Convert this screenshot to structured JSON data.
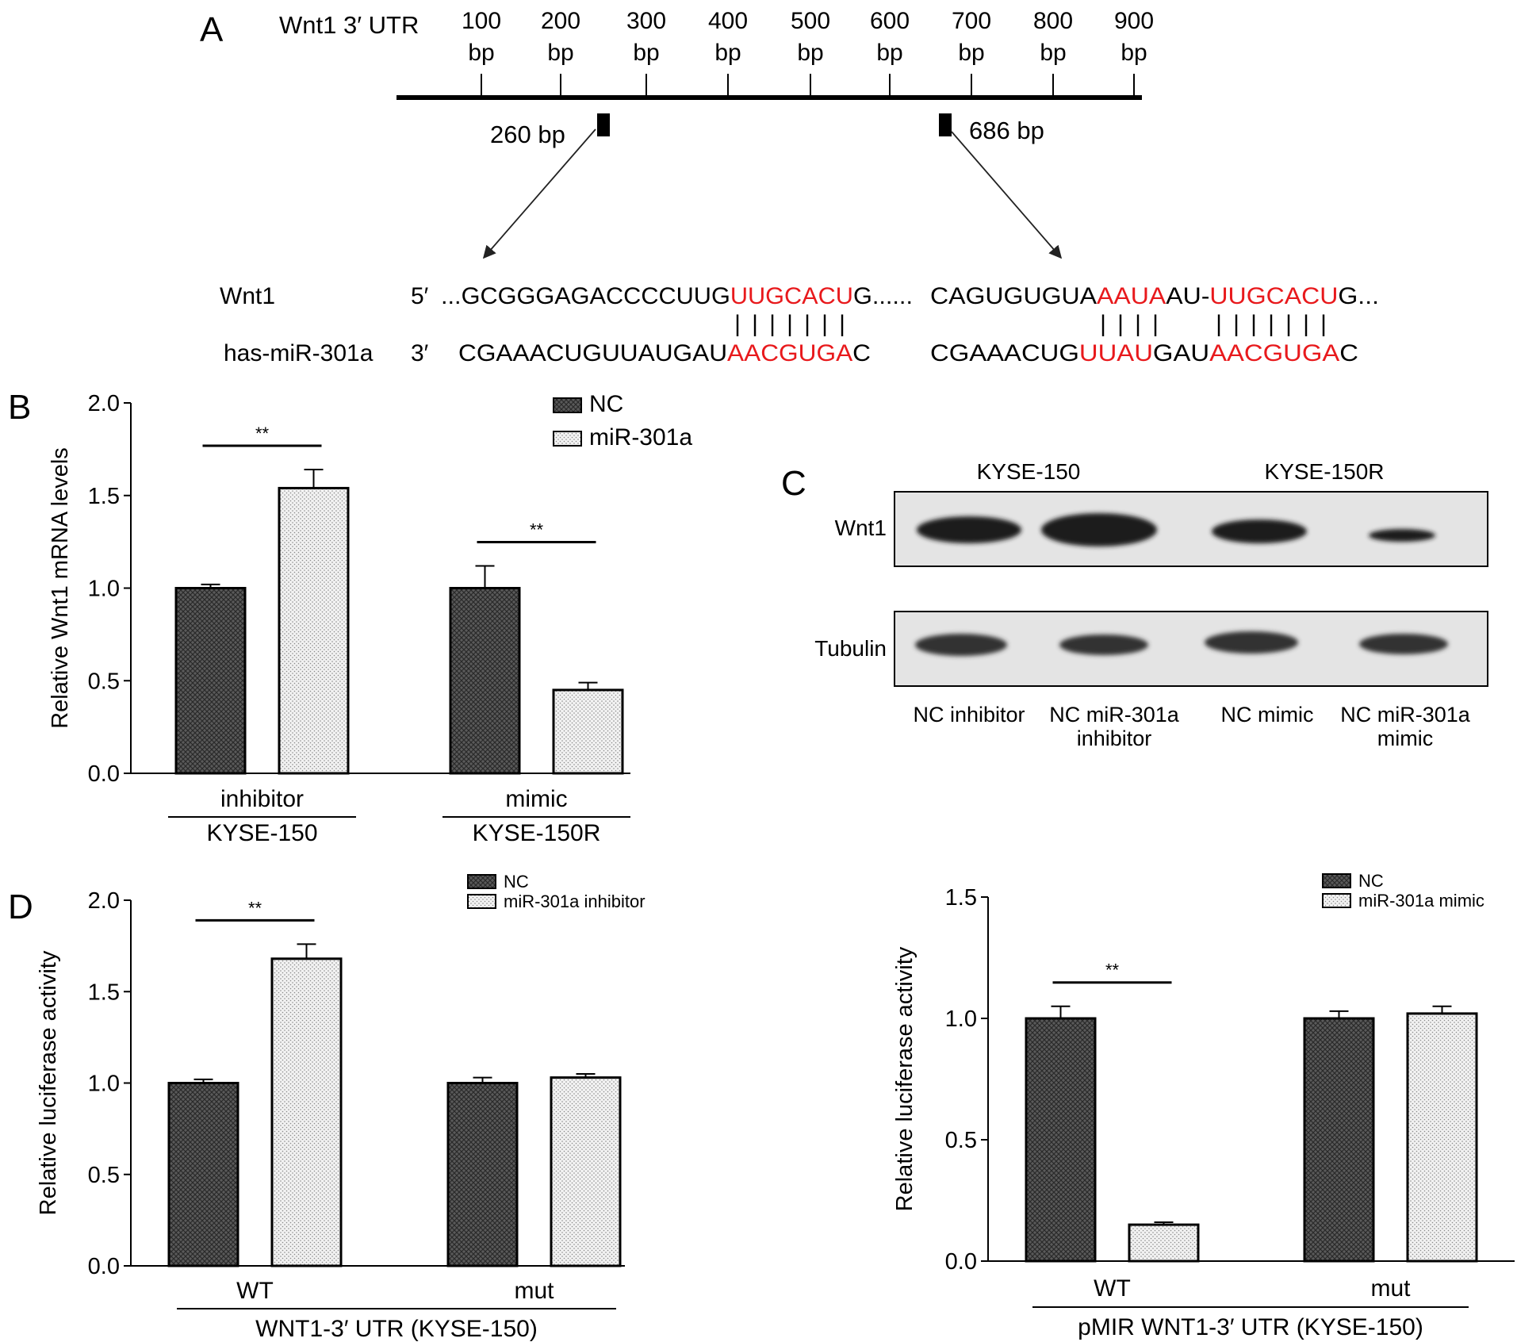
{
  "panel_letters": {
    "a": "A",
    "b": "B",
    "c": "C",
    "d": "D"
  },
  "panel_a": {
    "title": "Wnt1 3′ UTR",
    "ticks": [
      {
        "num": "100",
        "unit": "bp"
      },
      {
        "num": "200",
        "unit": "bp"
      },
      {
        "num": "300",
        "unit": "bp"
      },
      {
        "num": "400",
        "unit": "bp"
      },
      {
        "num": "500",
        "unit": "bp"
      },
      {
        "num": "600",
        "unit": "bp"
      },
      {
        "num": "700",
        "unit": "bp"
      },
      {
        "num": "800",
        "unit": "bp"
      },
      {
        "num": "900",
        "unit": "bp"
      }
    ],
    "site1_label": "260 bp",
    "site2_label": "686 bp",
    "gene_label": "Wnt1",
    "mirna_label": "has-miR-301a",
    "five_prime": "5′",
    "three_prime": "3′",
    "seq1_top": {
      "black1": "...GCGGGAGACCCCUUG",
      "red1": "UUGCACU",
      "black2": "G......"
    },
    "seq1_bot": {
      "black1": "CGAAACUGUUAUGAU",
      "red1": "AACGUGA",
      "black2": "C"
    },
    "seq2_top": {
      "black1": "CAGUGUGUA",
      "red1": "AAUA",
      "black2": "AU-",
      "red2": "UUGCACU",
      "black3": "G..."
    },
    "seq2_bot": {
      "black1": "CGAAACUG",
      "red1": "UUAU",
      "black2": "GAU",
      "red2": "AACGUGA",
      "black3": "C"
    },
    "pairing": "|"
  },
  "panel_c": {
    "group1": "KYSE-150",
    "group2": "KYSE-150R",
    "row1": "Wnt1",
    "row2": "Tubulin",
    "lanes": [
      {
        "line1": "NC inhibitor",
        "line2": ""
      },
      {
        "line1": "NC miR-301a",
        "line2": "inhibitor"
      },
      {
        "line1": "NC mimic",
        "line2": ""
      },
      {
        "line1": "NC miR-301a",
        "line2": "mimic"
      }
    ],
    "colors": {
      "band": "#1c1c1c",
      "blot_bg": "#e4e4e4"
    }
  },
  "chart_data": [
    {
      "type": "bar",
      "panel": "B",
      "ylabel": "Relative Wnt1 mRNA levels",
      "ylim": [
        0,
        2.0
      ],
      "yticks": [
        "0.0",
        "0.5",
        "1.0",
        "1.5",
        "2.0"
      ],
      "categories": [
        "inhibitor",
        "mimic"
      ],
      "groups": [
        "KYSE-150",
        "KYSE-150R"
      ],
      "series": [
        {
          "name": "NC",
          "values": [
            1.0,
            1.0
          ],
          "errors": [
            0.02,
            0.12
          ]
        },
        {
          "name": "miR-301a",
          "values": [
            1.54,
            0.45
          ],
          "errors": [
            0.1,
            0.04
          ]
        }
      ],
      "significance": [
        "**",
        "**"
      ],
      "legend": "top-right"
    },
    {
      "type": "bar",
      "panel": "D-left",
      "ylabel": "Relative luciferase activity",
      "ylim": [
        0,
        2.0
      ],
      "yticks": [
        "0.0",
        "0.5",
        "1.0",
        "1.5",
        "2.0"
      ],
      "categories": [
        "WT",
        "mut"
      ],
      "xlabel": "WNT1-3′ UTR (KYSE-150)",
      "series": [
        {
          "name": "NC",
          "values": [
            1.0,
            1.0
          ],
          "errors": [
            0.02,
            0.03
          ]
        },
        {
          "name": "miR-301a inhibitor",
          "values": [
            1.68,
            1.03
          ],
          "errors": [
            0.08,
            0.02
          ]
        }
      ],
      "significance": [
        "**",
        ""
      ],
      "legend": "top-right"
    },
    {
      "type": "bar",
      "panel": "D-right",
      "ylabel": "Relative luciferase activity",
      "ylim": [
        0,
        1.5
      ],
      "yticks": [
        "0.0",
        "0.5",
        "1.0",
        "1.5"
      ],
      "categories": [
        "WT",
        "mut"
      ],
      "xlabel": "pMIR WNT1-3′ UTR (KYSE-150)",
      "series": [
        {
          "name": "NC",
          "values": [
            1.0,
            1.0
          ],
          "errors": [
            0.05,
            0.03
          ]
        },
        {
          "name": "miR-301a mimic",
          "values": [
            0.15,
            1.02
          ],
          "errors": [
            0.01,
            0.03
          ]
        }
      ],
      "significance": [
        "**",
        ""
      ],
      "legend": "top-right"
    }
  ]
}
